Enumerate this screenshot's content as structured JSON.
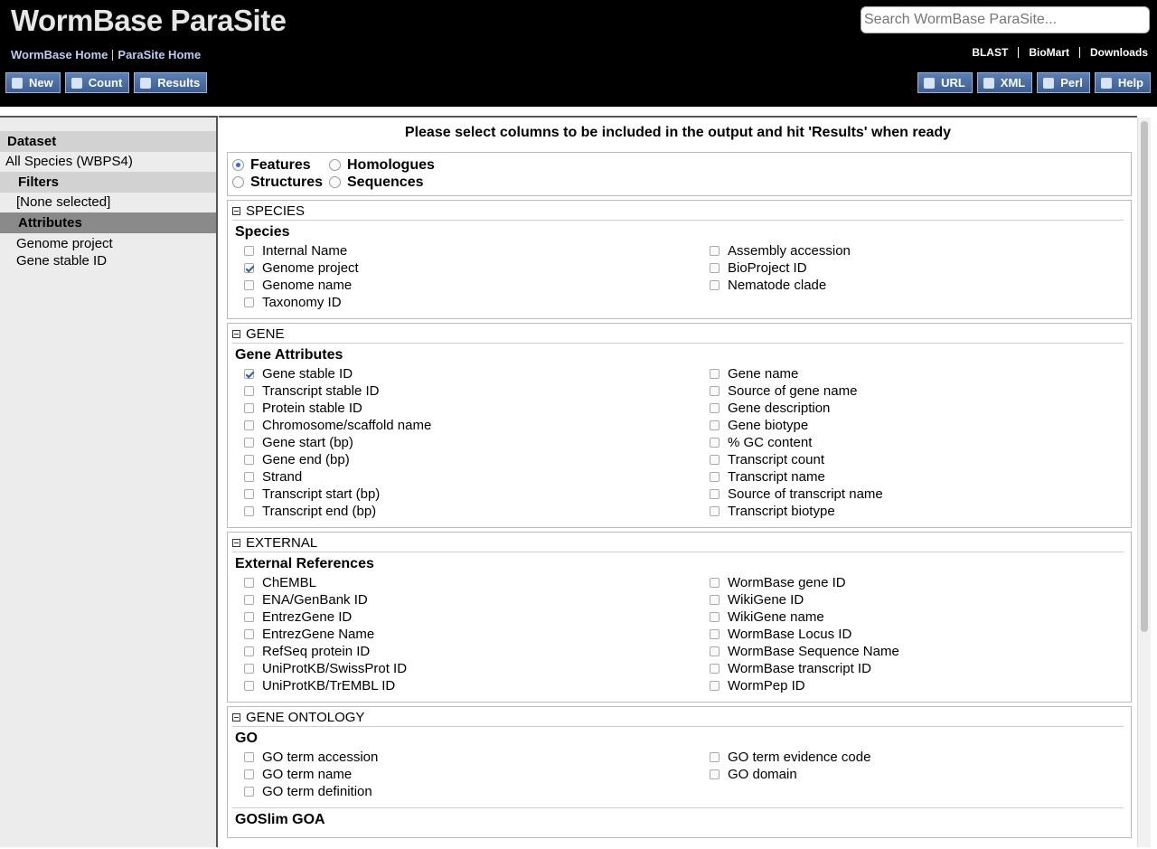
{
  "header": {
    "logo": "WormBase ParaSite",
    "links": [
      "WormBase Home",
      "ParaSite Home"
    ],
    "search_placeholder": "Search WormBase ParaSite...",
    "top_links": [
      "BLAST",
      "BioMart",
      "Downloads"
    ],
    "left_buttons": [
      "New",
      "Count",
      "Results"
    ],
    "right_buttons": [
      "URL",
      "XML",
      "Perl",
      "Help"
    ]
  },
  "sidebar": {
    "dataset_heading": "Dataset",
    "dataset": "All Species (WBPS4)",
    "filters_heading": "Filters",
    "filters": "[None selected]",
    "attributes_heading": "Attributes",
    "attributes": [
      "Genome project",
      "Gene stable ID"
    ]
  },
  "main": {
    "instruction": "Please select columns to be included in the output and hit 'Results' when ready",
    "page_options": [
      {
        "label": "Features",
        "selected": true
      },
      {
        "label": "Homologues",
        "selected": false
      },
      {
        "label": "Structures",
        "selected": false
      },
      {
        "label": "Sequences",
        "selected": false
      }
    ],
    "sections": [
      {
        "title": "SPECIES",
        "groups": [
          {
            "title": "Species",
            "left": [
              {
                "label": "Internal Name",
                "checked": false
              },
              {
                "label": "Genome project",
                "checked": true
              },
              {
                "label": "Genome name",
                "checked": false
              },
              {
                "label": "Taxonomy ID",
                "checked": false
              }
            ],
            "right": [
              {
                "label": "Assembly accession",
                "checked": false
              },
              {
                "label": "BioProject ID",
                "checked": false
              },
              {
                "label": "Nematode clade",
                "checked": false
              }
            ]
          }
        ]
      },
      {
        "title": "GENE",
        "groups": [
          {
            "title": "Gene Attributes",
            "left": [
              {
                "label": "Gene stable ID",
                "checked": true
              },
              {
                "label": "Transcript stable ID",
                "checked": false
              },
              {
                "label": "Protein stable ID",
                "checked": false
              },
              {
                "label": "Chromosome/scaffold name",
                "checked": false
              },
              {
                "label": "Gene start (bp)",
                "checked": false
              },
              {
                "label": "Gene end (bp)",
                "checked": false
              },
              {
                "label": "Strand",
                "checked": false
              },
              {
                "label": "Transcript start (bp)",
                "checked": false
              },
              {
                "label": "Transcript end (bp)",
                "checked": false
              }
            ],
            "right": [
              {
                "label": "Gene name",
                "checked": false
              },
              {
                "label": "Source of gene name",
                "checked": false
              },
              {
                "label": "Gene description",
                "checked": false
              },
              {
                "label": "Gene biotype",
                "checked": false
              },
              {
                "label": "% GC content",
                "checked": false
              },
              {
                "label": "Transcript count",
                "checked": false
              },
              {
                "label": "Transcript name",
                "checked": false
              },
              {
                "label": "Source of transcript name",
                "checked": false
              },
              {
                "label": "Transcript biotype",
                "checked": false
              }
            ]
          }
        ]
      },
      {
        "title": "EXTERNAL",
        "groups": [
          {
            "title": "External References",
            "left": [
              {
                "label": "ChEMBL",
                "checked": false
              },
              {
                "label": "ENA/GenBank ID",
                "checked": false
              },
              {
                "label": "EntrezGene ID",
                "checked": false
              },
              {
                "label": "EntrezGene Name",
                "checked": false
              },
              {
                "label": "RefSeq protein ID",
                "checked": false
              },
              {
                "label": "UniProtKB/SwissProt ID",
                "checked": false
              },
              {
                "label": "UniProtKB/TrEMBL ID",
                "checked": false
              }
            ],
            "right": [
              {
                "label": "WormBase gene ID",
                "checked": false
              },
              {
                "label": "WikiGene ID",
                "checked": false
              },
              {
                "label": "WikiGene name",
                "checked": false
              },
              {
                "label": "WormBase Locus ID",
                "checked": false
              },
              {
                "label": "WormBase Sequence Name",
                "checked": false
              },
              {
                "label": "WormBase transcript ID",
                "checked": false
              },
              {
                "label": "WormPep ID",
                "checked": false
              }
            ]
          }
        ]
      },
      {
        "title": "GENE ONTOLOGY",
        "groups": [
          {
            "title": "GO",
            "left": [
              {
                "label": "GO term accession",
                "checked": false
              },
              {
                "label": "GO term name",
                "checked": false
              },
              {
                "label": "GO term definition",
                "checked": false
              }
            ],
            "right": [
              {
                "label": "GO term evidence code",
                "checked": false
              },
              {
                "label": "GO domain",
                "checked": false
              }
            ]
          },
          {
            "title": "GOSlim GOA",
            "left": [],
            "right": []
          }
        ]
      }
    ]
  }
}
